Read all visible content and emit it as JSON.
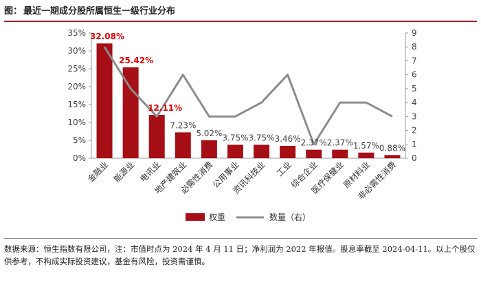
{
  "figure": {
    "prefix": "图：",
    "title": "最近一期成分股所属恒生一级行业分布"
  },
  "source_note": "数据来源：恒生指数有限公司，注：市值时点为 2024 年 4 月 11 日；净利润为 2022 年报值。股息率截至 2024-04-11。以上个股仅供参考，不构成实际投资建议，基金有风险，投资需谨慎。",
  "colors": {
    "bar": "#a50f15",
    "line": "#8c8c8c",
    "highlight": "#e00000",
    "rule": "#a61c2e"
  },
  "chart_data": {
    "type": "bar",
    "categories": [
      "金融业",
      "能源业",
      "电讯业",
      "地产建筑业",
      "必需性消费",
      "公用事业",
      "资讯科技业",
      "工业",
      "综合企业",
      "医疗保健业",
      "原材料业",
      "非必需性消费"
    ],
    "series": [
      {
        "name": "权重",
        "type": "bar",
        "axis": "left",
        "values": [
          32.08,
          25.42,
          12.11,
          7.23,
          5.02,
          3.75,
          3.75,
          3.46,
          2.37,
          2.37,
          1.57,
          0.88
        ],
        "labels": [
          "32.08%",
          "25.42%",
          "12.11%",
          "7.23%",
          "5.02%",
          "3.75%",
          "3.75%",
          "3.46%",
          "2.37%",
          "2.37%",
          "1.57%",
          "0.88%"
        ],
        "highlighted": [
          true,
          true,
          true,
          false,
          false,
          false,
          false,
          false,
          false,
          false,
          false,
          false
        ]
      },
      {
        "name": "数量（右）",
        "type": "line",
        "axis": "right",
        "values": [
          8,
          5,
          3,
          6,
          3,
          3,
          4,
          6,
          1,
          4,
          4,
          3
        ]
      }
    ],
    "y_left": {
      "ylim": [
        0,
        35
      ],
      "ticks": [
        "0%",
        "5%",
        "10%",
        "15%",
        "20%",
        "25%",
        "30%",
        "35%"
      ]
    },
    "y_right": {
      "ylim": [
        0,
        9
      ],
      "ticks": [
        "0",
        "1",
        "2",
        "3",
        "4",
        "5",
        "6",
        "7",
        "8",
        "9"
      ]
    },
    "legend": {
      "placement": "bottom-center"
    },
    "grid": false
  }
}
